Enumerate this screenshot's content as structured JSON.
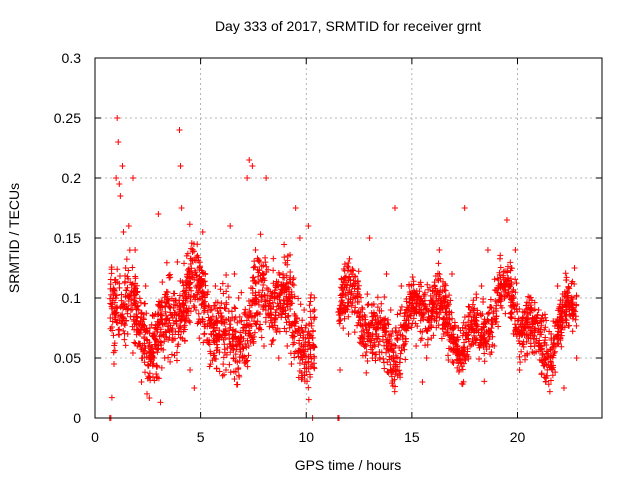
{
  "chart_data": {
    "type": "scatter",
    "title": "Day 333 of 2017, SRMTID for receiver grnt",
    "xlabel": "GPS time / hours",
    "ylabel": "SRMTID / TECUs",
    "xlim": [
      0,
      24.0
    ],
    "ylim": [
      0,
      0.3
    ],
    "x_ticks": [
      0,
      5,
      10,
      15,
      20
    ],
    "x_tick_labels": [
      "0",
      "5",
      "10",
      "15",
      "20"
    ],
    "y_ticks": [
      0,
      0.05,
      0.1,
      0.15,
      0.2,
      0.25,
      0.3
    ],
    "y_tick_labels": [
      "0",
      "0.05",
      "0.1",
      "0.15",
      "0.2",
      "0.25",
      "0.3"
    ],
    "grid": true,
    "marker": "plus",
    "color": "#ff0000",
    "data_gap_hours": [
      10.4,
      11.5
    ],
    "zero_points": [
      {
        "x": 0.7,
        "y": 0
      },
      {
        "x": 0.75,
        "y": 0
      },
      {
        "x": 10.3,
        "y": 0
      },
      {
        "x": 11.5,
        "y": 0
      },
      {
        "x": 11.55,
        "y": 0
      }
    ],
    "series": [
      {
        "name": "SRMTID",
        "points": [
          {
            "x": 0.8,
            "y": 0.017
          },
          {
            "x": 0.9,
            "y": 0.045
          },
          {
            "x": 1.0,
            "y": 0.2
          },
          {
            "x": 1.05,
            "y": 0.25
          },
          {
            "x": 1.1,
            "y": 0.23
          },
          {
            "x": 1.15,
            "y": 0.195
          },
          {
            "x": 1.2,
            "y": 0.185
          },
          {
            "x": 1.3,
            "y": 0.21
          },
          {
            "x": 1.35,
            "y": 0.155
          },
          {
            "x": 1.45,
            "y": 0.125
          },
          {
            "x": 1.55,
            "y": 0.07
          },
          {
            "x": 1.6,
            "y": 0.16
          },
          {
            "x": 1.7,
            "y": 0.09
          },
          {
            "x": 1.8,
            "y": 0.2
          },
          {
            "x": 1.9,
            "y": 0.14
          },
          {
            "x": 2.0,
            "y": 0.06
          },
          {
            "x": 2.2,
            "y": 0.03
          },
          {
            "x": 2.4,
            "y": 0.11
          },
          {
            "x": 2.6,
            "y": 0.075
          },
          {
            "x": 2.8,
            "y": 0.05
          },
          {
            "x": 3.0,
            "y": 0.17
          },
          {
            "x": 3.1,
            "y": 0.013
          },
          {
            "x": 3.3,
            "y": 0.05
          },
          {
            "x": 3.5,
            "y": 0.095
          },
          {
            "x": 3.7,
            "y": 0.065
          },
          {
            "x": 3.9,
            "y": 0.13
          },
          {
            "x": 4.0,
            "y": 0.24
          },
          {
            "x": 4.05,
            "y": 0.21
          },
          {
            "x": 4.1,
            "y": 0.175
          },
          {
            "x": 4.3,
            "y": 0.09
          },
          {
            "x": 4.5,
            "y": 0.04
          },
          {
            "x": 4.7,
            "y": 0.025
          },
          {
            "x": 4.9,
            "y": 0.08
          },
          {
            "x": 5.1,
            "y": 0.155
          },
          {
            "x": 5.4,
            "y": 0.065
          },
          {
            "x": 5.7,
            "y": 0.11
          },
          {
            "x": 6.0,
            "y": 0.085
          },
          {
            "x": 6.2,
            "y": 0.04
          },
          {
            "x": 6.4,
            "y": 0.16
          },
          {
            "x": 6.6,
            "y": 0.12
          },
          {
            "x": 6.8,
            "y": 0.1
          },
          {
            "x": 7.0,
            "y": 0.075
          },
          {
            "x": 7.2,
            "y": 0.2
          },
          {
            "x": 7.3,
            "y": 0.215
          },
          {
            "x": 7.45,
            "y": 0.21
          },
          {
            "x": 7.6,
            "y": 0.14
          },
          {
            "x": 7.8,
            "y": 0.13
          },
          {
            "x": 8.0,
            "y": 0.06
          },
          {
            "x": 8.1,
            "y": 0.2
          },
          {
            "x": 8.3,
            "y": 0.1
          },
          {
            "x": 8.5,
            "y": 0.08
          },
          {
            "x": 8.7,
            "y": 0.05
          },
          {
            "x": 8.9,
            "y": 0.12
          },
          {
            "x": 9.1,
            "y": 0.06
          },
          {
            "x": 9.3,
            "y": 0.045
          },
          {
            "x": 9.5,
            "y": 0.175
          },
          {
            "x": 9.7,
            "y": 0.15
          },
          {
            "x": 9.9,
            "y": 0.09
          },
          {
            "x": 10.1,
            "y": 0.16
          },
          {
            "x": 10.2,
            "y": 0.1
          },
          {
            "x": 11.6,
            "y": 0.04
          },
          {
            "x": 11.8,
            "y": 0.09
          },
          {
            "x": 12.0,
            "y": 0.07
          },
          {
            "x": 12.2,
            "y": 0.11
          },
          {
            "x": 12.5,
            "y": 0.085
          },
          {
            "x": 12.8,
            "y": 0.06
          },
          {
            "x": 13.0,
            "y": 0.15
          },
          {
            "x": 13.2,
            "y": 0.095
          },
          {
            "x": 13.5,
            "y": 0.08
          },
          {
            "x": 13.8,
            "y": 0.12
          },
          {
            "x": 14.0,
            "y": 0.09
          },
          {
            "x": 14.2,
            "y": 0.175
          },
          {
            "x": 14.5,
            "y": 0.11
          },
          {
            "x": 14.8,
            "y": 0.075
          },
          {
            "x": 15.0,
            "y": 0.095
          },
          {
            "x": 15.2,
            "y": 0.06
          },
          {
            "x": 15.5,
            "y": 0.03
          },
          {
            "x": 15.7,
            "y": 0.05
          },
          {
            "x": 16.0,
            "y": 0.1
          },
          {
            "x": 16.3,
            "y": 0.14
          },
          {
            "x": 16.6,
            "y": 0.08
          },
          {
            "x": 16.9,
            "y": 0.12
          },
          {
            "x": 17.2,
            "y": 0.075
          },
          {
            "x": 17.5,
            "y": 0.175
          },
          {
            "x": 17.8,
            "y": 0.09
          },
          {
            "x": 18.0,
            "y": 0.065
          },
          {
            "x": 18.3,
            "y": 0.11
          },
          {
            "x": 18.6,
            "y": 0.14
          },
          {
            "x": 18.9,
            "y": 0.06
          },
          {
            "x": 19.2,
            "y": 0.1
          },
          {
            "x": 19.5,
            "y": 0.165
          },
          {
            "x": 19.7,
            "y": 0.125
          },
          {
            "x": 19.9,
            "y": 0.14
          },
          {
            "x": 20.1,
            "y": 0.04
          },
          {
            "x": 20.4,
            "y": 0.075
          },
          {
            "x": 20.7,
            "y": 0.055
          },
          {
            "x": 21.0,
            "y": 0.09
          },
          {
            "x": 21.3,
            "y": 0.045
          },
          {
            "x": 21.6,
            "y": 0.065
          },
          {
            "x": 21.9,
            "y": 0.11
          },
          {
            "x": 22.2,
            "y": 0.025
          },
          {
            "x": 22.5,
            "y": 0.085
          },
          {
            "x": 22.7,
            "y": 0.125
          },
          {
            "x": 22.8,
            "y": 0.05
          }
        ],
        "background_clusters": [
          {
            "x_from": 0.7,
            "x_to": 10.4,
            "n": 1300,
            "ymean": 0.085,
            "ysd": 0.032,
            "ymin": 0.008,
            "ymax": 0.2
          },
          {
            "x_from": 11.5,
            "x_to": 22.8,
            "n": 1400,
            "ymean": 0.08,
            "ysd": 0.025,
            "ymin": 0.022,
            "ymax": 0.165
          }
        ]
      }
    ]
  }
}
